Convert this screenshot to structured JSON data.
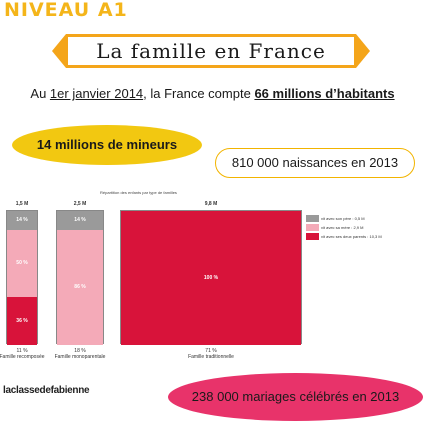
{
  "header": {
    "level": "NIVEAU A1",
    "title": "La famille en France"
  },
  "intro": {
    "prefix": "Au ",
    "date": "1er janvier 2014",
    "middle": ", la France compte ",
    "population": "66 millions d’habitants"
  },
  "bubbles": {
    "minors": "14 millions de mineurs",
    "births": "810 000 naissances en 2013",
    "marriages": "238 000 mariages célébrés en 2013"
  },
  "chart_title": "Répartition des enfants par type de familles",
  "chart_data": {
    "type": "bar",
    "title": "Répartition des enfants par type de familles",
    "categories": [
      "Famille recomposée",
      "Famille monoparentale",
      "Famille traditionnelle"
    ],
    "totals": [
      "1,5 M",
      "2,5 M",
      "9,8 M"
    ],
    "shares": [
      "11 %",
      "18 %",
      "71 %"
    ],
    "total_values": [
      1.5,
      2.5,
      9.8
    ],
    "series": [
      {
        "name": "vit avec son père : 0,5 M",
        "values": [
          14,
          14,
          0
        ]
      },
      {
        "name": "vit avec sa mère : 2,9 M",
        "values": [
          50,
          86,
          0
        ]
      },
      {
        "name": "vit avec ses deux parents : 10,3 M",
        "values": [
          36,
          0,
          100
        ]
      }
    ],
    "segment_labels": [
      [
        "14 %",
        "50 %",
        "36 %"
      ],
      [
        "14 %",
        "86 %"
      ],
      [
        "100 %"
      ]
    ],
    "colors": [
      "#9a9a9a",
      "#f4aab8",
      "#d8133a"
    ]
  },
  "footer": {
    "brand": "laclassedefabienne"
  },
  "colors": {
    "accent_orange": "#f4b51a",
    "yellow": "#f2c811",
    "pink": "#e8336a",
    "red": "#d8133a"
  }
}
